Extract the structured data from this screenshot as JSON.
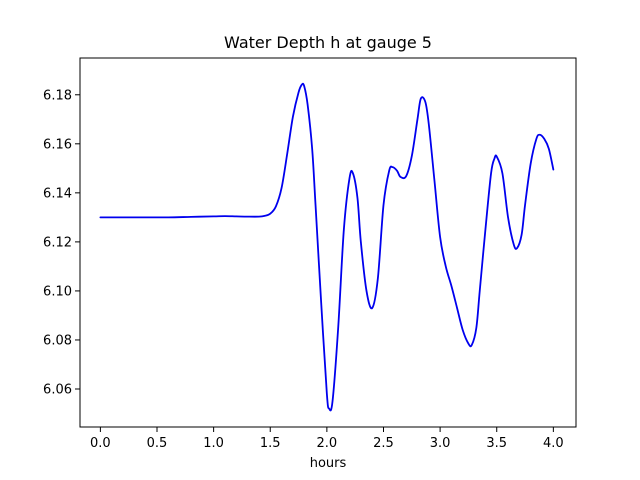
{
  "chart_data": {
    "type": "line",
    "title": "Water Depth h at gauge 5",
    "xlabel": "hours",
    "ylabel": "",
    "xlim": [
      -0.18,
      4.2
    ],
    "ylim": [
      6.0445,
      6.195
    ],
    "xticks": [
      0.0,
      0.5,
      1.0,
      1.5,
      2.0,
      2.5,
      3.0,
      3.5,
      4.0
    ],
    "xtick_labels": [
      "0.0",
      "0.5",
      "1.0",
      "1.5",
      "2.0",
      "2.5",
      "3.0",
      "3.5",
      "4.0"
    ],
    "yticks": [
      6.06,
      6.08,
      6.1,
      6.12,
      6.14,
      6.16,
      6.18
    ],
    "ytick_labels": [
      "6.06",
      "6.08",
      "6.10",
      "6.12",
      "6.14",
      "6.16",
      "6.18"
    ],
    "grid": false,
    "series": [
      {
        "color": "#0000ee",
        "x": [
          0.0,
          0.2,
          0.4,
          0.6,
          0.8,
          1.0,
          1.1,
          1.2,
          1.3,
          1.4,
          1.45,
          1.5,
          1.55,
          1.6,
          1.65,
          1.7,
          1.75,
          1.78,
          1.8,
          1.83,
          1.87,
          1.9,
          1.95,
          2.0,
          2.02,
          2.05,
          2.1,
          2.15,
          2.2,
          2.23,
          2.27,
          2.3,
          2.35,
          2.4,
          2.45,
          2.5,
          2.55,
          2.58,
          2.62,
          2.65,
          2.7,
          2.75,
          2.8,
          2.83,
          2.87,
          2.9,
          2.95,
          3.0,
          3.05,
          3.1,
          3.15,
          3.2,
          3.25,
          3.28,
          3.32,
          3.35,
          3.4,
          3.45,
          3.48,
          3.5,
          3.55,
          3.6,
          3.65,
          3.68,
          3.72,
          3.75,
          3.8,
          3.85,
          3.88,
          3.92,
          3.96,
          4.0
        ],
        "y": [
          6.13,
          6.13,
          6.13,
          6.13,
          6.1302,
          6.1304,
          6.1305,
          6.1304,
          6.1303,
          6.1303,
          6.1306,
          6.1315,
          6.1345,
          6.142,
          6.156,
          6.171,
          6.181,
          6.1842,
          6.1835,
          6.176,
          6.158,
          6.135,
          6.095,
          6.058,
          6.052,
          6.055,
          6.085,
          6.125,
          6.146,
          6.148,
          6.138,
          6.12,
          6.1,
          6.093,
          6.105,
          6.135,
          6.149,
          6.1505,
          6.149,
          6.1465,
          6.1468,
          6.155,
          6.17,
          6.1785,
          6.177,
          6.168,
          6.145,
          6.122,
          6.11,
          6.102,
          6.093,
          6.084,
          6.0785,
          6.078,
          6.085,
          6.1,
          6.125,
          6.148,
          6.154,
          6.1548,
          6.148,
          6.13,
          6.119,
          6.1175,
          6.123,
          6.135,
          6.152,
          6.162,
          6.1637,
          6.162,
          6.158,
          6.1495
        ]
      }
    ]
  }
}
